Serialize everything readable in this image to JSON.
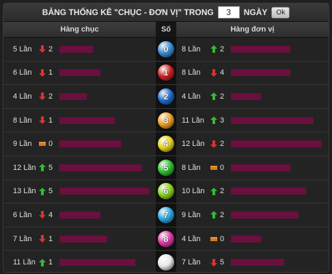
{
  "title": {
    "text_before": "BẢNG THỐNG KÊ \"CHỤC - ĐƠN VỊ\" TRONG",
    "days_value": "3",
    "text_after": "NGÀY",
    "ok_label": "Ok"
  },
  "headers": {
    "left": "Hàng chục",
    "mid": "Số",
    "right": "Hàng đơn vị"
  },
  "colors": {
    "bar": "#6b0f3f",
    "up": "#35b935",
    "down": "#e03030",
    "flat": "#e07a12"
  },
  "rows": [
    {
      "digit": "0",
      "ball_color": "#3a8fd8",
      "left": {
        "count": "5 Lần",
        "trend": "down",
        "delta": "2",
        "bar": 0.35
      },
      "right": {
        "count": "8 Lần",
        "trend": "up",
        "delta": "2",
        "bar": 0.62
      }
    },
    {
      "digit": "1",
      "ball_color": "#d42020",
      "left": {
        "count": "6 Lần",
        "trend": "down",
        "delta": "1",
        "bar": 0.43
      },
      "right": {
        "count": "8 Lần",
        "trend": "down",
        "delta": "4",
        "bar": 0.62
      }
    },
    {
      "digit": "2",
      "ball_color": "#1e6fd0",
      "left": {
        "count": "4 Lần",
        "trend": "down",
        "delta": "2",
        "bar": 0.29
      },
      "right": {
        "count": "4 Lần",
        "trend": "up",
        "delta": "2",
        "bar": 0.31
      }
    },
    {
      "digit": "3",
      "ball_color": "#f0a020",
      "left": {
        "count": "8 Lần",
        "trend": "down",
        "delta": "1",
        "bar": 0.58
      },
      "right": {
        "count": "11 Lần",
        "trend": "up",
        "delta": "3",
        "bar": 0.86
      }
    },
    {
      "digit": "4",
      "ball_color": "#e8d21a",
      "left": {
        "count": "9 Lần",
        "trend": "flat",
        "delta": "0",
        "bar": 0.65
      },
      "right": {
        "count": "12 Lần",
        "trend": "down",
        "delta": "2",
        "bar": 0.94
      }
    },
    {
      "digit": "5",
      "ball_color": "#2ec42e",
      "left": {
        "count": "12 Lần",
        "trend": "up",
        "delta": "5",
        "bar": 0.87
      },
      "right": {
        "count": "8 Lần",
        "trend": "flat",
        "delta": "0",
        "bar": 0.62
      }
    },
    {
      "digit": "6",
      "ball_color": "#8ad41a",
      "left": {
        "count": "13 Lần",
        "trend": "up",
        "delta": "5",
        "bar": 0.94
      },
      "right": {
        "count": "10 Lần",
        "trend": "up",
        "delta": "2",
        "bar": 0.78
      }
    },
    {
      "digit": "7",
      "ball_color": "#2aa8e0",
      "left": {
        "count": "6 Lần",
        "trend": "down",
        "delta": "4",
        "bar": 0.43
      },
      "right": {
        "count": "9 Lần",
        "trend": "up",
        "delta": "2",
        "bar": 0.7
      }
    },
    {
      "digit": "8",
      "ball_color": "#e03aa8",
      "left": {
        "count": "7 Lần",
        "trend": "down",
        "delta": "1",
        "bar": 0.5
      },
      "right": {
        "count": "4 Lần",
        "trend": "flat",
        "delta": "0",
        "bar": 0.31
      }
    },
    {
      "digit": "",
      "ball_color": "#e8e8e8",
      "left": {
        "count": "11 Lần",
        "trend": "up",
        "delta": "1",
        "bar": 0.8
      },
      "right": {
        "count": "7 Lần",
        "trend": "down",
        "delta": "5",
        "bar": 0.55
      }
    }
  ]
}
